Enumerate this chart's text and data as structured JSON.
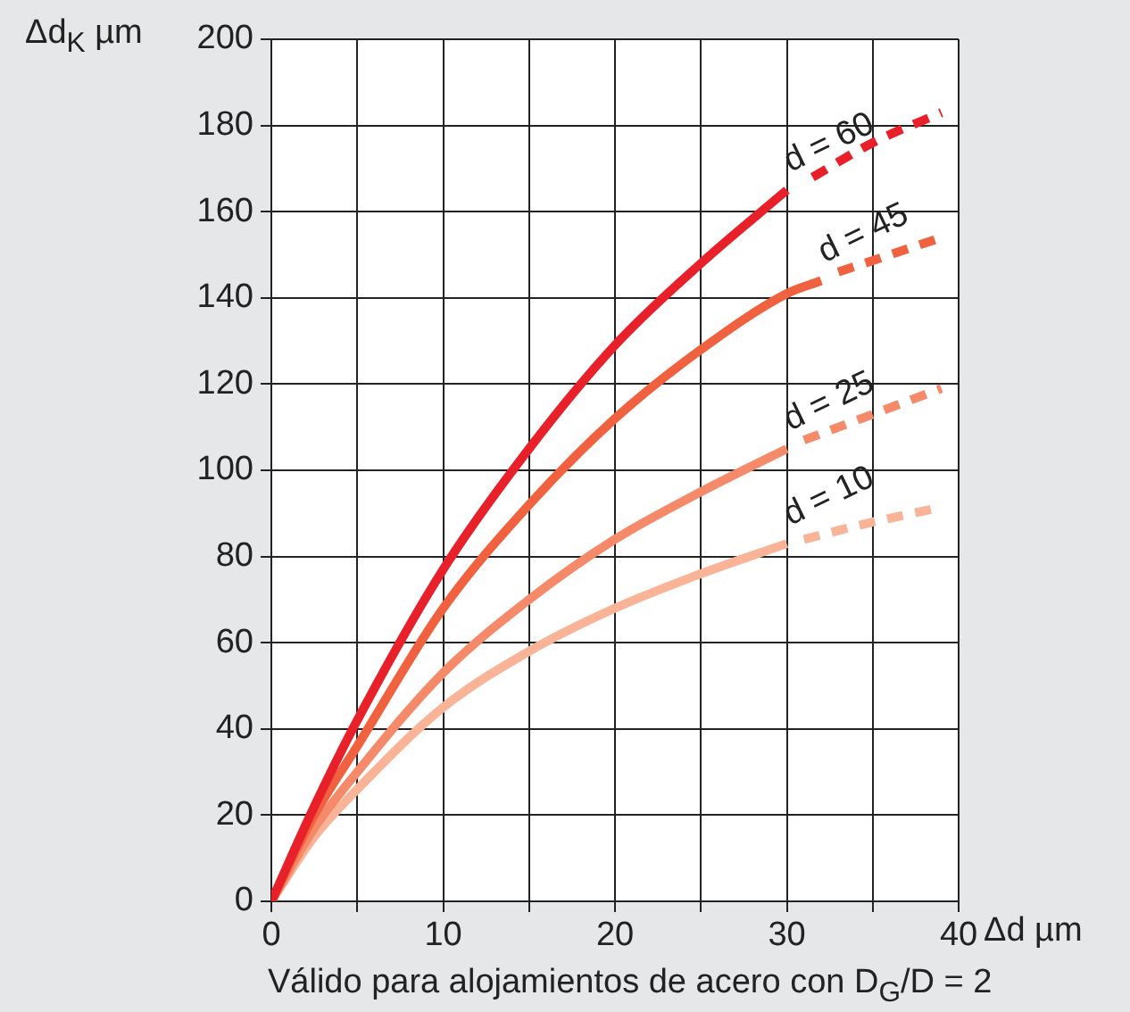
{
  "chart_data": {
    "type": "line",
    "xlabel": "Δd µm",
    "ylabel": "Δd$_{K}$ µm",
    "annotations": [
      "Válido para alojamientos de acero con D$_{G}$/D = 2"
    ],
    "xlim": [
      0,
      40
    ],
    "xticks": [
      0,
      {
        "value": 5,
        "label": null
      },
      10,
      {
        "value": 15,
        "label": null
      },
      20,
      {
        "value": 25,
        "label": null
      },
      30,
      {
        "value": 35,
        "label": null
      },
      40
    ],
    "ylim": [
      0,
      200
    ],
    "yticks": [
      0,
      20,
      40,
      60,
      80,
      100,
      120,
      140,
      160,
      180,
      200
    ],
    "grid": true,
    "legend": false,
    "marker": "none",
    "series": [
      {
        "name": "d = 60",
        "color": "#e8202a",
        "line_style": "solid",
        "x": [
          0,
          2.5,
          5,
          10,
          15,
          20,
          25,
          30
        ],
        "values": [
          0,
          22,
          42,
          77,
          105,
          129,
          148,
          165
        ]
      },
      {
        "color": "#e8202a",
        "line_style": "dashed",
        "x": [
          31.5,
          35,
          39
        ],
        "values": [
          168,
          176,
          183
        ]
      },
      {
        "name": "d = 45",
        "color": "#f0623f",
        "line_style": "solid",
        "x": [
          0,
          2.5,
          5,
          10,
          15,
          20,
          25,
          30,
          32
        ],
        "values": [
          0,
          20,
          36,
          68,
          92,
          112,
          128,
          141,
          144
        ]
      },
      {
        "color": "#f0623f",
        "line_style": "dashed",
        "x": [
          33,
          36,
          39
        ],
        "values": [
          146,
          150,
          154
        ]
      },
      {
        "name": "d = 25",
        "color": "#f48a6a",
        "line_style": "solid",
        "x": [
          0,
          2.5,
          5,
          10,
          15,
          20,
          25,
          30
        ],
        "values": [
          0,
          17,
          30,
          53,
          70,
          84,
          95,
          105
        ]
      },
      {
        "color": "#f48a6a",
        "line_style": "dashed",
        "x": [
          31,
          35,
          39
        ],
        "values": [
          107,
          113,
          119
        ]
      },
      {
        "name": "d = 10",
        "color": "#f9b396",
        "line_style": "solid",
        "x": [
          0,
          2.5,
          5,
          10,
          15,
          20,
          25,
          30
        ],
        "values": [
          0,
          15,
          26,
          45,
          58,
          68,
          76,
          83
        ]
      },
      {
        "color": "#f9b396",
        "line_style": "dashed",
        "x": [
          31,
          35,
          38.5
        ],
        "values": [
          84,
          88,
          91
        ]
      }
    ]
  }
}
